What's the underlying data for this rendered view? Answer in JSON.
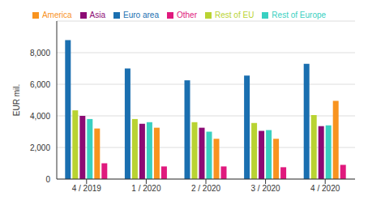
{
  "chart_data": {
    "type": "bar",
    "y_label": "EUR mil.",
    "categories": [
      "4 / 2019",
      "1 / 2020",
      "2 / 2020",
      "3 / 2020",
      "4 / 2020"
    ],
    "series": [
      {
        "name": "Euro area",
        "color": "#1a6fb0",
        "values": [
          8800,
          7000,
          6250,
          6550,
          7300
        ]
      },
      {
        "name": "Rest of EU",
        "color": "#b9d332",
        "values": [
          4350,
          3800,
          3600,
          3550,
          4050
        ]
      },
      {
        "name": "Asia",
        "color": "#8c0a74",
        "values": [
          4000,
          3500,
          3250,
          3050,
          3350
        ]
      },
      {
        "name": "Rest of Europe",
        "color": "#38d0c1",
        "values": [
          3800,
          3600,
          3000,
          3100,
          3400
        ]
      },
      {
        "name": "America",
        "color": "#f8931f",
        "values": [
          3200,
          3250,
          2550,
          2550,
          4950
        ]
      },
      {
        "name": "Other",
        "color": "#e0197d",
        "values": [
          1000,
          800,
          800,
          750,
          900
        ]
      }
    ],
    "ylim": [
      0,
      10000
    ],
    "yticks": [
      0,
      {
        "value": 2000,
        "label": "2,000"
      },
      {
        "value": 4000,
        "label": "4,000"
      },
      {
        "value": 6000,
        "label": "6,000"
      },
      {
        "value": 8000,
        "label": "8,000"
      }
    ],
    "grid": true,
    "legend": "top"
  }
}
